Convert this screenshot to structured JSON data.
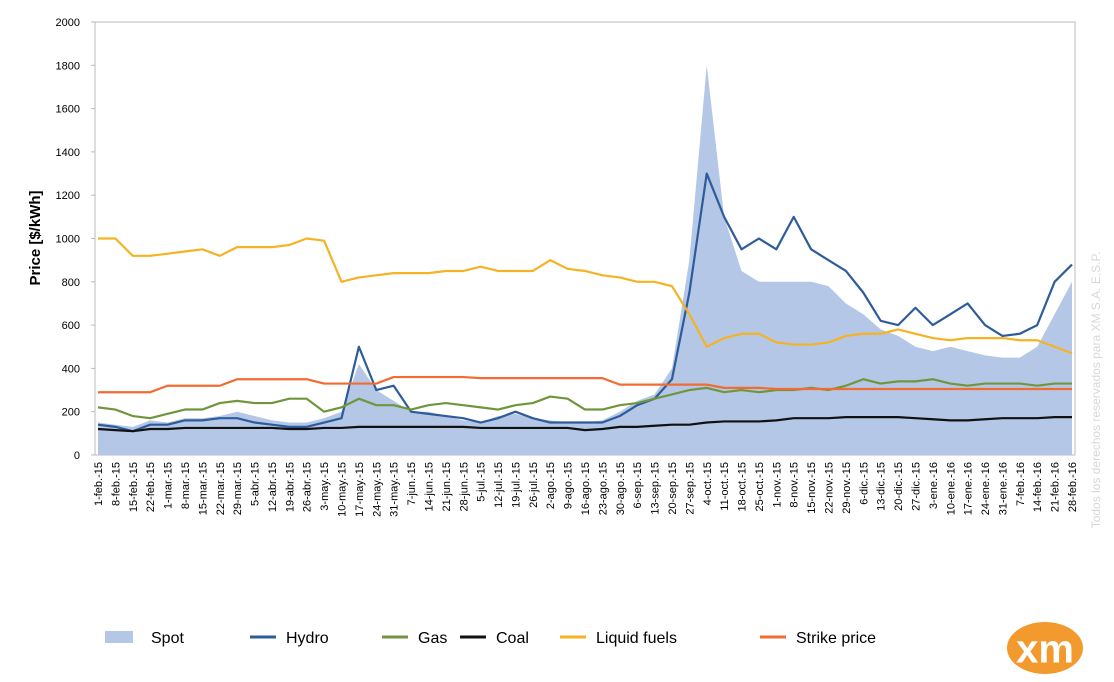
{
  "chart_data": {
    "type": "line",
    "y_label": "Price [$/kWh]",
    "watermark": "Todos los derechos reservados para XM S.A. E.S.P.",
    "logo": "xm",
    "categories": [
      "1-feb.-15",
      "8-feb.-15",
      "15-feb.-15",
      "22-feb.-15",
      "1-mar.-15",
      "8-mar.-15",
      "15-mar.-15",
      "22-mar.-15",
      "29-mar.-15",
      "5-abr.-15",
      "12-abr.-15",
      "19-abr.-15",
      "26-abr.-15",
      "3-may.-15",
      "10-may.-15",
      "17-may.-15",
      "24-may.-15",
      "31-may.-15",
      "7-jun.-15",
      "14-jun.-15",
      "21-jun.-15",
      "28-jun.-15",
      "5-jul.-15",
      "12-jul.-15",
      "19-jul.-15",
      "26-jul.-15",
      "2-ago.-15",
      "9-ago.-15",
      "16-ago.-15",
      "23-ago.-15",
      "30-ago.-15",
      "6-sep.-15",
      "13-sep.-15",
      "20-sep.-15",
      "27-sep.-15",
      "4-oct.-15",
      "11-oct.-15",
      "18-oct.-15",
      "25-oct.-15",
      "1-nov.-15",
      "8-nov.-15",
      "15-nov.-15",
      "22-nov.-15",
      "29-nov.-15",
      "6-dic.-15",
      "13-dic.-15",
      "20-dic.-15",
      "27-dic.-15",
      "3-ene.-16",
      "10-ene.-16",
      "17-ene.-16",
      "24-ene.-16",
      "31-ene.-16",
      "7-feb.-16",
      "14-feb.-16",
      "21-feb.-16",
      "28-feb.-16"
    ],
    "series": [
      {
        "name": "Spot",
        "color": "#b4c7e7",
        "fill": true,
        "values": [
          150,
          140,
          130,
          160,
          150,
          170,
          170,
          180,
          200,
          180,
          160,
          150,
          150,
          170,
          200,
          420,
          300,
          250,
          200,
          200,
          180,
          160,
          150,
          180,
          190,
          170,
          160,
          150,
          150,
          160,
          200,
          250,
          280,
          400,
          900,
          1800,
          1100,
          850,
          800,
          800,
          800,
          800,
          780,
          700,
          650,
          580,
          550,
          500,
          480,
          500,
          480,
          460,
          450,
          450,
          500,
          650,
          800
        ]
      },
      {
        "name": "Hydro",
        "color": "#2e5c9a",
        "values": [
          140,
          130,
          110,
          140,
          140,
          160,
          160,
          170,
          170,
          150,
          140,
          130,
          130,
          150,
          170,
          500,
          300,
          320,
          200,
          190,
          180,
          170,
          150,
          170,
          200,
          170,
          150,
          150,
          150,
          150,
          180,
          230,
          260,
          350,
          750,
          1300,
          1100,
          950,
          1000,
          950,
          1100,
          950,
          900,
          850,
          750,
          620,
          600,
          680,
          600,
          650,
          700,
          600,
          550,
          560,
          600,
          800,
          880
        ]
      },
      {
        "name": "Gas",
        "color": "#70963c",
        "values": [
          220,
          210,
          180,
          170,
          190,
          210,
          210,
          240,
          250,
          240,
          240,
          260,
          260,
          200,
          220,
          260,
          230,
          230,
          210,
          230,
          240,
          230,
          220,
          210,
          230,
          240,
          270,
          260,
          210,
          210,
          230,
          240,
          260,
          280,
          300,
          310,
          290,
          300,
          290,
          300,
          300,
          310,
          300,
          320,
          350,
          330,
          340,
          340,
          350,
          330,
          320,
          330,
          330,
          330,
          320,
          330,
          330
        ]
      },
      {
        "name": "Coal",
        "color": "#111111",
        "values": [
          120,
          115,
          110,
          120,
          120,
          125,
          125,
          125,
          125,
          125,
          125,
          120,
          120,
          125,
          125,
          130,
          130,
          130,
          130,
          130,
          130,
          130,
          125,
          125,
          125,
          125,
          125,
          125,
          115,
          120,
          130,
          130,
          135,
          140,
          140,
          150,
          155,
          155,
          155,
          160,
          170,
          170,
          170,
          175,
          175,
          175,
          175,
          170,
          165,
          160,
          160,
          165,
          170,
          170,
          170,
          175,
          175
        ]
      },
      {
        "name": "Liquid fuels",
        "color": "#f5b324",
        "values": [
          1000,
          1000,
          920,
          920,
          930,
          940,
          950,
          920,
          960,
          960,
          960,
          970,
          1000,
          990,
          800,
          820,
          830,
          840,
          840,
          840,
          850,
          850,
          870,
          850,
          850,
          850,
          900,
          860,
          850,
          830,
          820,
          800,
          800,
          780,
          650,
          500,
          540,
          560,
          560,
          520,
          510,
          510,
          520,
          550,
          560,
          560,
          580,
          560,
          540,
          530,
          540,
          540,
          540,
          530,
          530,
          500,
          470
        ]
      },
      {
        "name": "Strike price",
        "color": "#f26b30",
        "values": [
          290,
          290,
          290,
          290,
          320,
          320,
          320,
          320,
          350,
          350,
          350,
          350,
          350,
          330,
          330,
          330,
          330,
          360,
          360,
          360,
          360,
          360,
          355,
          355,
          355,
          355,
          355,
          355,
          355,
          355,
          325,
          325,
          325,
          325,
          325,
          325,
          310,
          310,
          310,
          305,
          305,
          305,
          305,
          305,
          305,
          305,
          305,
          305,
          305,
          305,
          305,
          305,
          305,
          305,
          305,
          305,
          305
        ]
      }
    ],
    "ylim": [
      0,
      2000
    ],
    "yticks": [
      0,
      200,
      400,
      600,
      800,
      1000,
      1200,
      1400,
      1600,
      1800,
      2000
    ],
    "grid": false,
    "legend": "bottom"
  }
}
